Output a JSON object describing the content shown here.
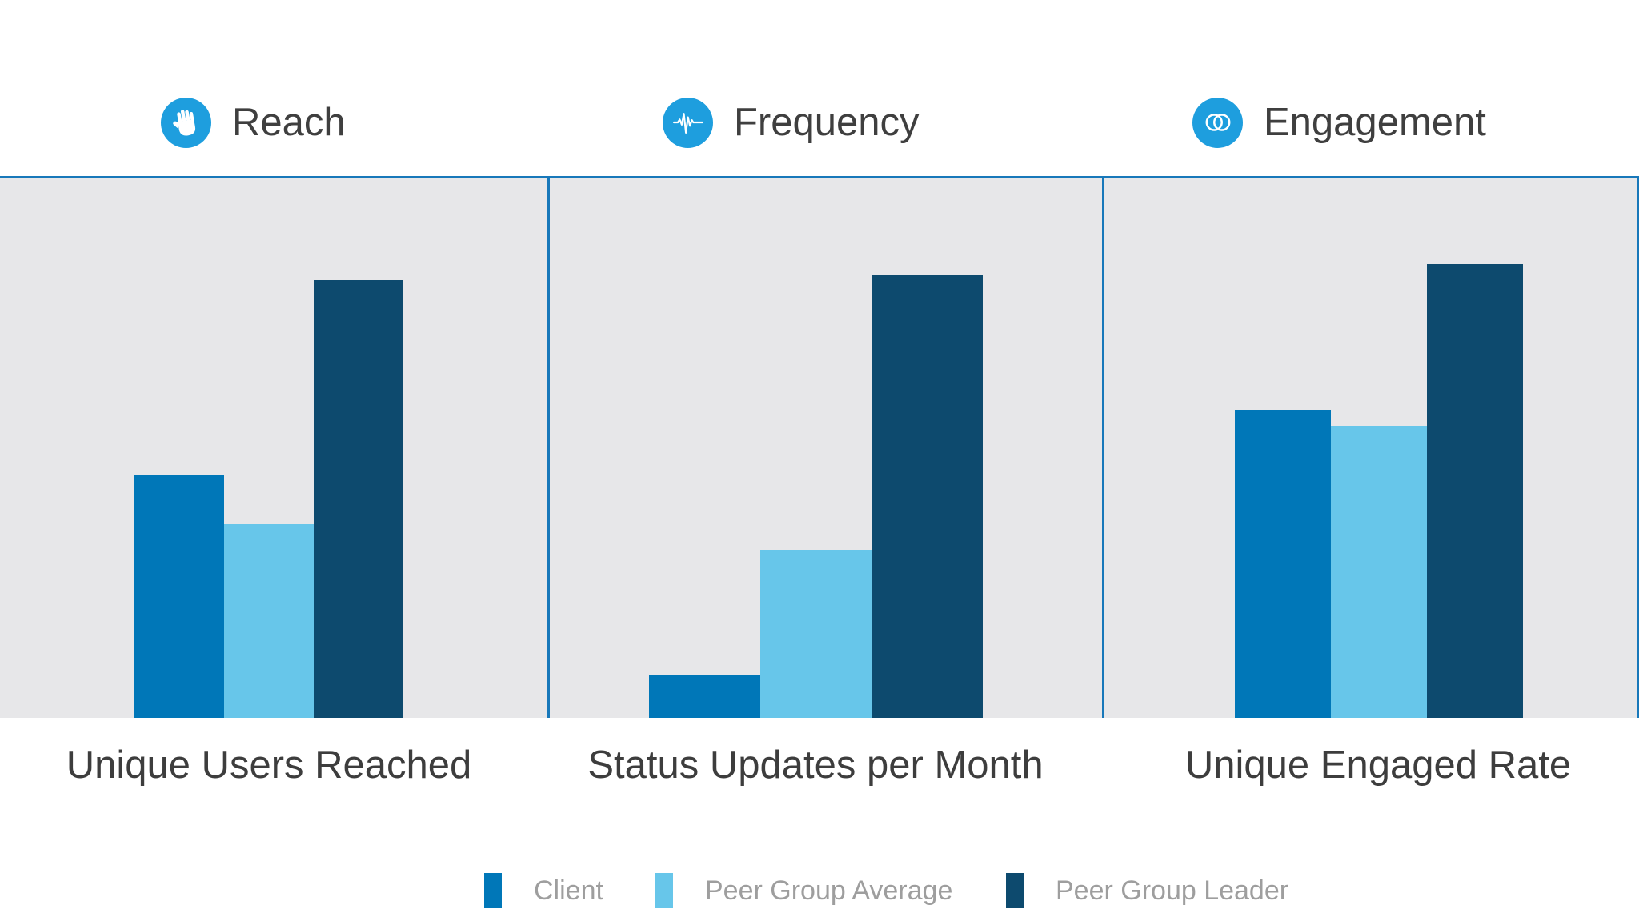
{
  "colors": {
    "client": "#0077b8",
    "peer_group_average": "#67c6ea",
    "peer_group_leader": "#0d4a6e",
    "icon_circle": "#1e9ede",
    "divider_blue": "#1878ba",
    "panel_background": "#e7e7e9",
    "header_text": "#3f3f3f",
    "title_text": "#3d3d3d",
    "legend_text": "#9e9e9e"
  },
  "sections": [
    {
      "label": "Reach",
      "icon": "hand-icon"
    },
    {
      "label": "Frequency",
      "icon": "waveform-icon"
    },
    {
      "label": "Engagement",
      "icon": "overlapping-circles-icon"
    }
  ],
  "legend": {
    "items": [
      {
        "label": "Client",
        "color": "#0077b8"
      },
      {
        "label": "Peer Group Average",
        "color": "#67c6ea"
      },
      {
        "label": "Peer Group Leader",
        "color": "#0d4a6e"
      }
    ]
  },
  "chart_data": [
    {
      "type": "bar",
      "section": "Reach",
      "title": "Unique Users Reached",
      "categories": [
        "Client",
        "Peer Group Average",
        "Peer Group Leader"
      ],
      "values": [
        45,
        36,
        81
      ],
      "colors": [
        "#0077b8",
        "#67c6ea",
        "#0d4a6e"
      ],
      "ylim": [
        0,
        100
      ],
      "units": "relative height, no axis or value labels shown",
      "grid": false,
      "legend_position": "bottom"
    },
    {
      "type": "bar",
      "section": "Frequency",
      "title": "Status Updates per Month",
      "categories": [
        "Client",
        "Peer Group Average",
        "Peer Group Leader"
      ],
      "values": [
        8,
        31,
        82
      ],
      "colors": [
        "#0077b8",
        "#67c6ea",
        "#0d4a6e"
      ],
      "ylim": [
        0,
        100
      ],
      "units": "relative height, no axis or value labels shown",
      "grid": false,
      "legend_position": "bottom"
    },
    {
      "type": "bar",
      "section": "Engagement",
      "title": "Unique Engaged Rate",
      "categories": [
        "Client",
        "Peer Group Average",
        "Peer Group Leader"
      ],
      "values": [
        57,
        54,
        84
      ],
      "colors": [
        "#0077b8",
        "#67c6ea",
        "#0d4a6e"
      ],
      "ylim": [
        0,
        100
      ],
      "units": "relative height, no axis or value labels shown",
      "grid": false,
      "legend_position": "bottom"
    }
  ]
}
